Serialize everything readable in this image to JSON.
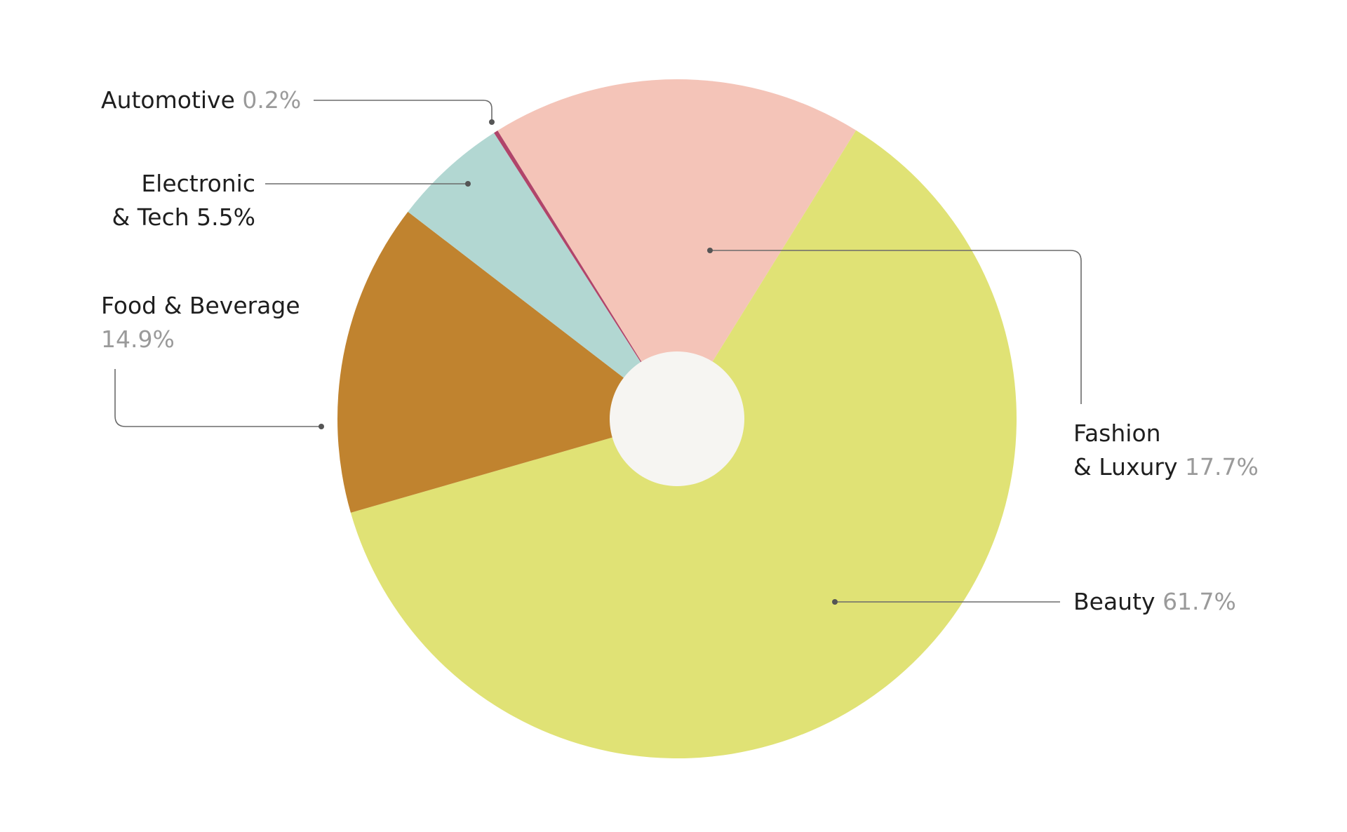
{
  "chart_data": {
    "type": "pie",
    "categories": [
      "Fashion & Luxury",
      "Beauty",
      "Food & Beverage",
      "Electronic & Tech",
      "Automotive"
    ],
    "values": [
      17.7,
      61.7,
      14.9,
      5.5,
      0.2
    ],
    "value_labels": [
      "17.7%",
      "61.7%",
      "14.9%",
      "5.5%",
      "0.2%"
    ],
    "colors": [
      "#f4c4b8",
      "#e0e275",
      "#c0832f",
      "#b2d7d2",
      "#b0456a"
    ]
  }
}
